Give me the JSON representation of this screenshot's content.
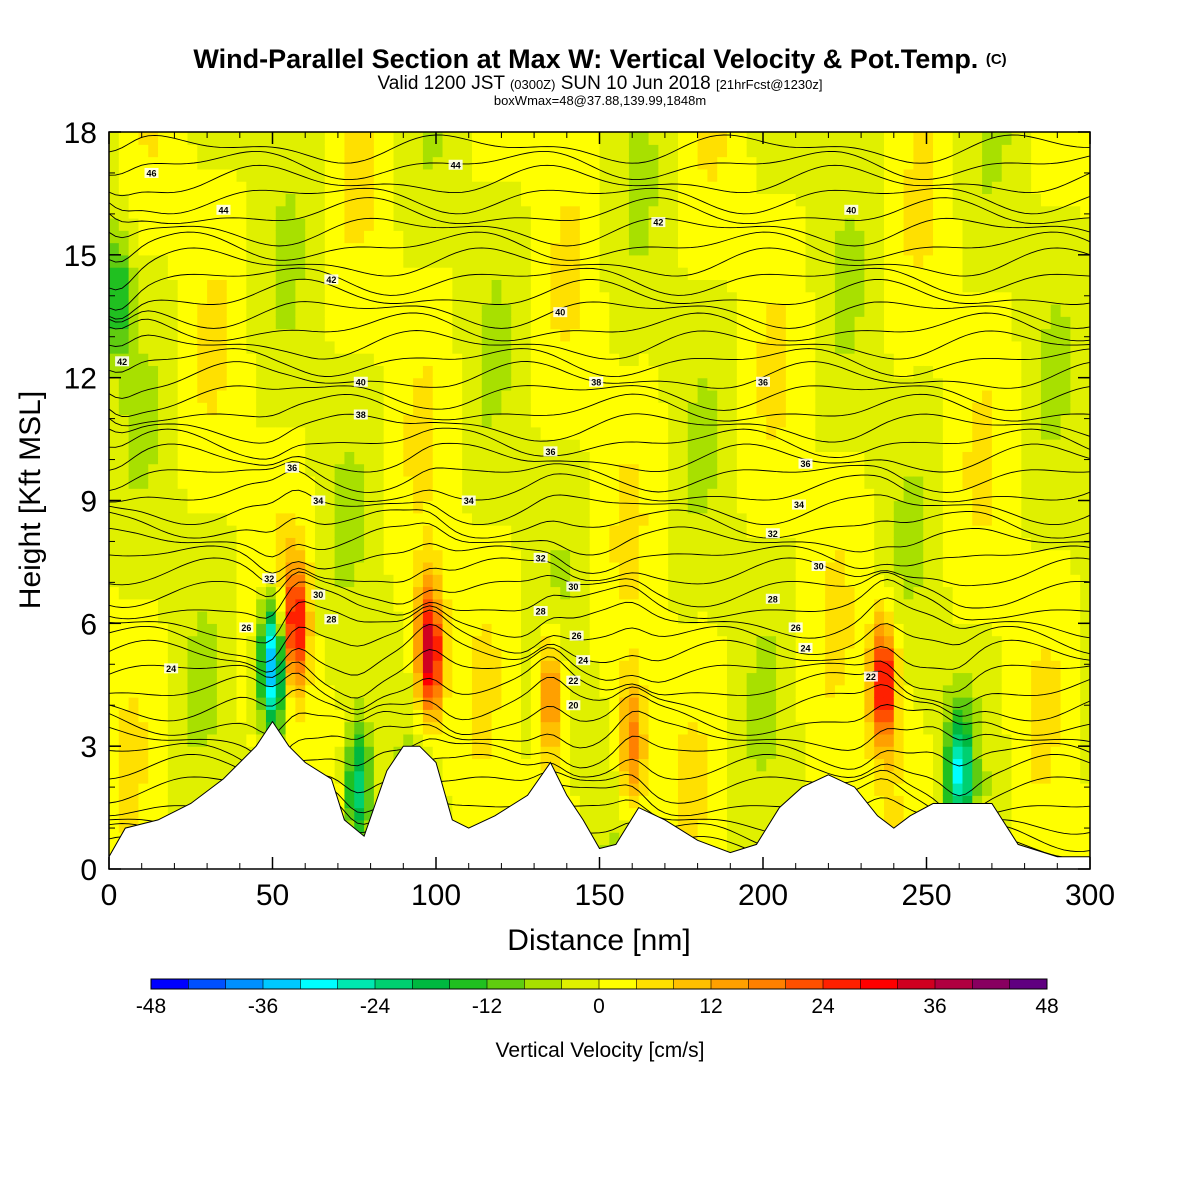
{
  "title": {
    "main": "Wind-Parallel Section at Max W: Vertical Velocity & Pot.Temp.",
    "copyright": "(C)",
    "valid_prefix": "Valid 1200 JST",
    "valid_utc": "(0300Z)",
    "valid_date": "SUN 10 Jun 2018",
    "fcst": "[21hrFcst@1230z]",
    "box_info": "boxWmax=48@37.88,139.99,1848m"
  },
  "chart_data": {
    "type": "heatmap",
    "xlabel": "Distance [nm]",
    "ylabel": "Height [Kft MSL]",
    "xlim": [
      0,
      300
    ],
    "ylim": [
      0,
      18
    ],
    "x_ticks": [
      0,
      50,
      100,
      150,
      200,
      250,
      300
    ],
    "y_ticks": [
      0,
      3,
      6,
      9,
      12,
      15,
      18
    ],
    "colorbar": {
      "label": "Vertical Velocity [cm/s]",
      "ticks": [
        -48,
        -36,
        -24,
        -12,
        0,
        12,
        24,
        36,
        48
      ],
      "colors": [
        "#0000ff",
        "#0050ff",
        "#0090ff",
        "#00c8ff",
        "#00ffff",
        "#00e8b0",
        "#00d070",
        "#00b840",
        "#20c020",
        "#60cc10",
        "#a8e000",
        "#e0f000",
        "#ffff00",
        "#ffe000",
        "#ffc000",
        "#ffa000",
        "#ff8000",
        "#ff5000",
        "#ff2000",
        "#ff0000",
        "#d00020",
        "#b00040",
        "#880060",
        "#600080"
      ]
    },
    "terrain_kft": [
      [
        0,
        0.3
      ],
      [
        5,
        1
      ],
      [
        15,
        1.2
      ],
      [
        25,
        1.6
      ],
      [
        35,
        2.2
      ],
      [
        45,
        3.0
      ],
      [
        50,
        3.6
      ],
      [
        55,
        3.0
      ],
      [
        60,
        2.6
      ],
      [
        68,
        2.2
      ],
      [
        72,
        1.2
      ],
      [
        78,
        0.8
      ],
      [
        85,
        2.4
      ],
      [
        90,
        3.0
      ],
      [
        95,
        3.0
      ],
      [
        100,
        2.6
      ],
      [
        105,
        1.2
      ],
      [
        110,
        1.0
      ],
      [
        118,
        1.3
      ],
      [
        128,
        1.8
      ],
      [
        135,
        2.6
      ],
      [
        140,
        1.8
      ],
      [
        145,
        1.2
      ],
      [
        150,
        0.5
      ],
      [
        155,
        0.6
      ],
      [
        162,
        1.5
      ],
      [
        170,
        1.2
      ],
      [
        180,
        0.7
      ],
      [
        190,
        0.4
      ],
      [
        198,
        0.6
      ],
      [
        205,
        1.5
      ],
      [
        212,
        2.0
      ],
      [
        220,
        2.3
      ],
      [
        228,
        2.0
      ],
      [
        235,
        1.3
      ],
      [
        240,
        1.0
      ],
      [
        245,
        1.3
      ],
      [
        252,
        1.6
      ],
      [
        262,
        1.6
      ],
      [
        270,
        1.6
      ],
      [
        278,
        0.6
      ],
      [
        290,
        0.3
      ],
      [
        300,
        0.3
      ]
    ],
    "updrafts": [
      {
        "x": 50,
        "z": 5.0,
        "w": -40
      },
      {
        "x": 57,
        "z": 6.0,
        "w": 28
      },
      {
        "x": 98,
        "z": 5.3,
        "w": 38
      },
      {
        "x": 135,
        "z": 4.2,
        "w": 20
      },
      {
        "x": 160,
        "z": 3.0,
        "w": 20
      },
      {
        "x": 237,
        "z": 4.5,
        "w": 32
      },
      {
        "x": 260,
        "z": 2.4,
        "w": -25
      },
      {
        "x": 76,
        "z": 2.0,
        "w": -25
      },
      {
        "x": 3,
        "z": 14.0,
        "w": -15
      }
    ],
    "theta_labels": [
      {
        "x": 13,
        "z": 17.0,
        "t": "46"
      },
      {
        "x": 35,
        "z": 16.1,
        "t": "44"
      },
      {
        "x": 106,
        "z": 17.2,
        "t": "44"
      },
      {
        "x": 68,
        "z": 14.4,
        "t": "42"
      },
      {
        "x": 168,
        "z": 15.8,
        "t": "42"
      },
      {
        "x": 227,
        "z": 16.1,
        "t": "40"
      },
      {
        "x": 138,
        "z": 13.6,
        "t": "40"
      },
      {
        "x": 77,
        "z": 11.9,
        "t": "40"
      },
      {
        "x": 4,
        "z": 12.4,
        "t": "42"
      },
      {
        "x": 77,
        "z": 11.1,
        "t": "38"
      },
      {
        "x": 149,
        "z": 11.9,
        "t": "38"
      },
      {
        "x": 200,
        "z": 11.9,
        "t": "36"
      },
      {
        "x": 56,
        "z": 9.8,
        "t": "36"
      },
      {
        "x": 135,
        "z": 10.2,
        "t": "36"
      },
      {
        "x": 213,
        "z": 9.9,
        "t": "36"
      },
      {
        "x": 64,
        "z": 9.0,
        "t": "34"
      },
      {
        "x": 110,
        "z": 9.0,
        "t": "34"
      },
      {
        "x": 211,
        "z": 8.9,
        "t": "34"
      },
      {
        "x": 203,
        "z": 8.2,
        "t": "32"
      },
      {
        "x": 132,
        "z": 7.6,
        "t": "32"
      },
      {
        "x": 217,
        "z": 7.4,
        "t": "30"
      },
      {
        "x": 49,
        "z": 7.1,
        "t": "32"
      },
      {
        "x": 142,
        "z": 6.9,
        "t": "30"
      },
      {
        "x": 64,
        "z": 6.7,
        "t": "30"
      },
      {
        "x": 68,
        "z": 6.1,
        "t": "28"
      },
      {
        "x": 132,
        "z": 6.3,
        "t": "28"
      },
      {
        "x": 203,
        "z": 6.6,
        "t": "28"
      },
      {
        "x": 210,
        "z": 5.9,
        "t": "26"
      },
      {
        "x": 42,
        "z": 5.9,
        "t": "26"
      },
      {
        "x": 143,
        "z": 5.7,
        "t": "26"
      },
      {
        "x": 213,
        "z": 5.4,
        "t": "24"
      },
      {
        "x": 145,
        "z": 5.1,
        "t": "24"
      },
      {
        "x": 19,
        "z": 4.9,
        "t": "24"
      },
      {
        "x": 142,
        "z": 4.6,
        "t": "22"
      },
      {
        "x": 233,
        "z": 4.7,
        "t": "22"
      },
      {
        "x": 142,
        "z": 4.0,
        "t": "20"
      }
    ]
  }
}
